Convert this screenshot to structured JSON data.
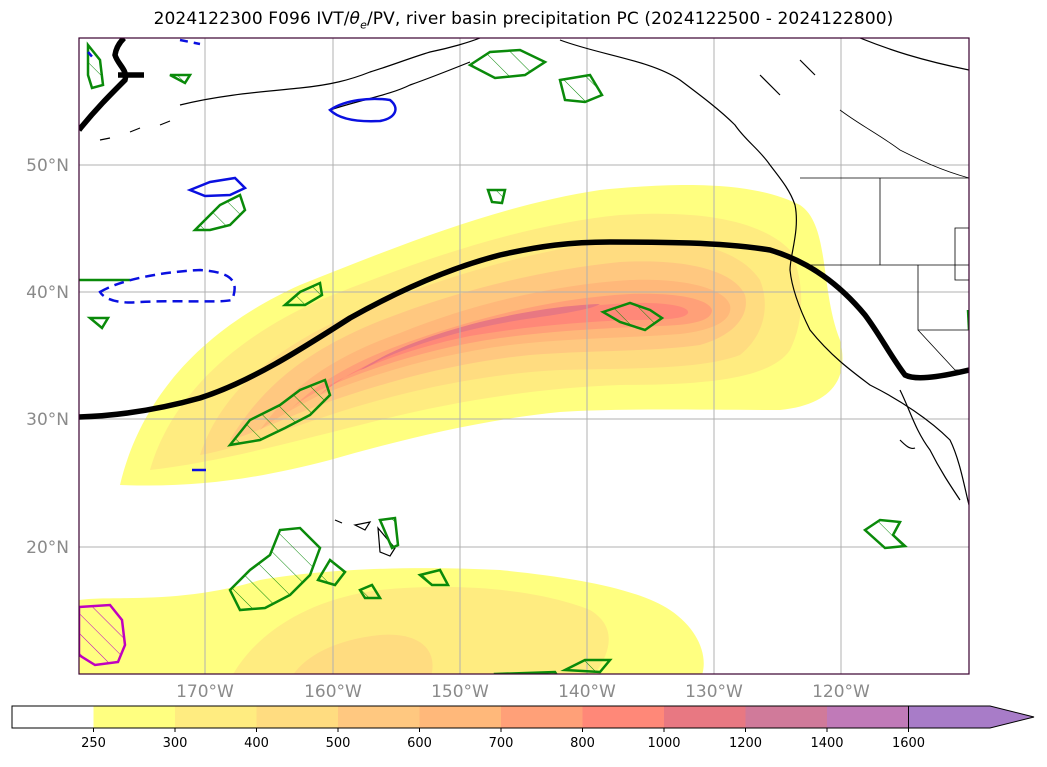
{
  "title": {
    "prefix": "2024122300 F096 IVT/",
    "theta": "θ",
    "theta_sub": "e",
    "suffix": "/PV, river basin precipitation PC (2024122500 - 2024122800)"
  },
  "map": {
    "lat_labels": [
      "50°N",
      "40°N",
      "30°N",
      "20°N"
    ],
    "lon_labels": [
      "170°W",
      "160°W",
      "150°W",
      "140°W",
      "130°W",
      "120°W"
    ],
    "frame_color": "#3a0030",
    "grid_color": "#b0b0b0"
  },
  "colorbar": {
    "ticks": [
      "250",
      "300",
      "400",
      "500",
      "600",
      "700",
      "800",
      "1000",
      "1200",
      "1400",
      "1600"
    ],
    "colors": [
      "#ffffff",
      "#ffff80",
      "#ffec80",
      "#ffdc80",
      "#ffc880",
      "#ffb87a",
      "#ffa078",
      "#ff8878",
      "#e87882",
      "#d07a9a",
      "#c07ab8",
      "#a87cc8"
    ],
    "extend": "max"
  },
  "legend_colors": {
    "ivt_line": "#000000",
    "theta_contour": "#0a8a0a",
    "pv_contour_solid": "#0a10e0",
    "pv_contour_dashed": "#0a10e0",
    "magenta_contour": "#c000c0"
  }
}
